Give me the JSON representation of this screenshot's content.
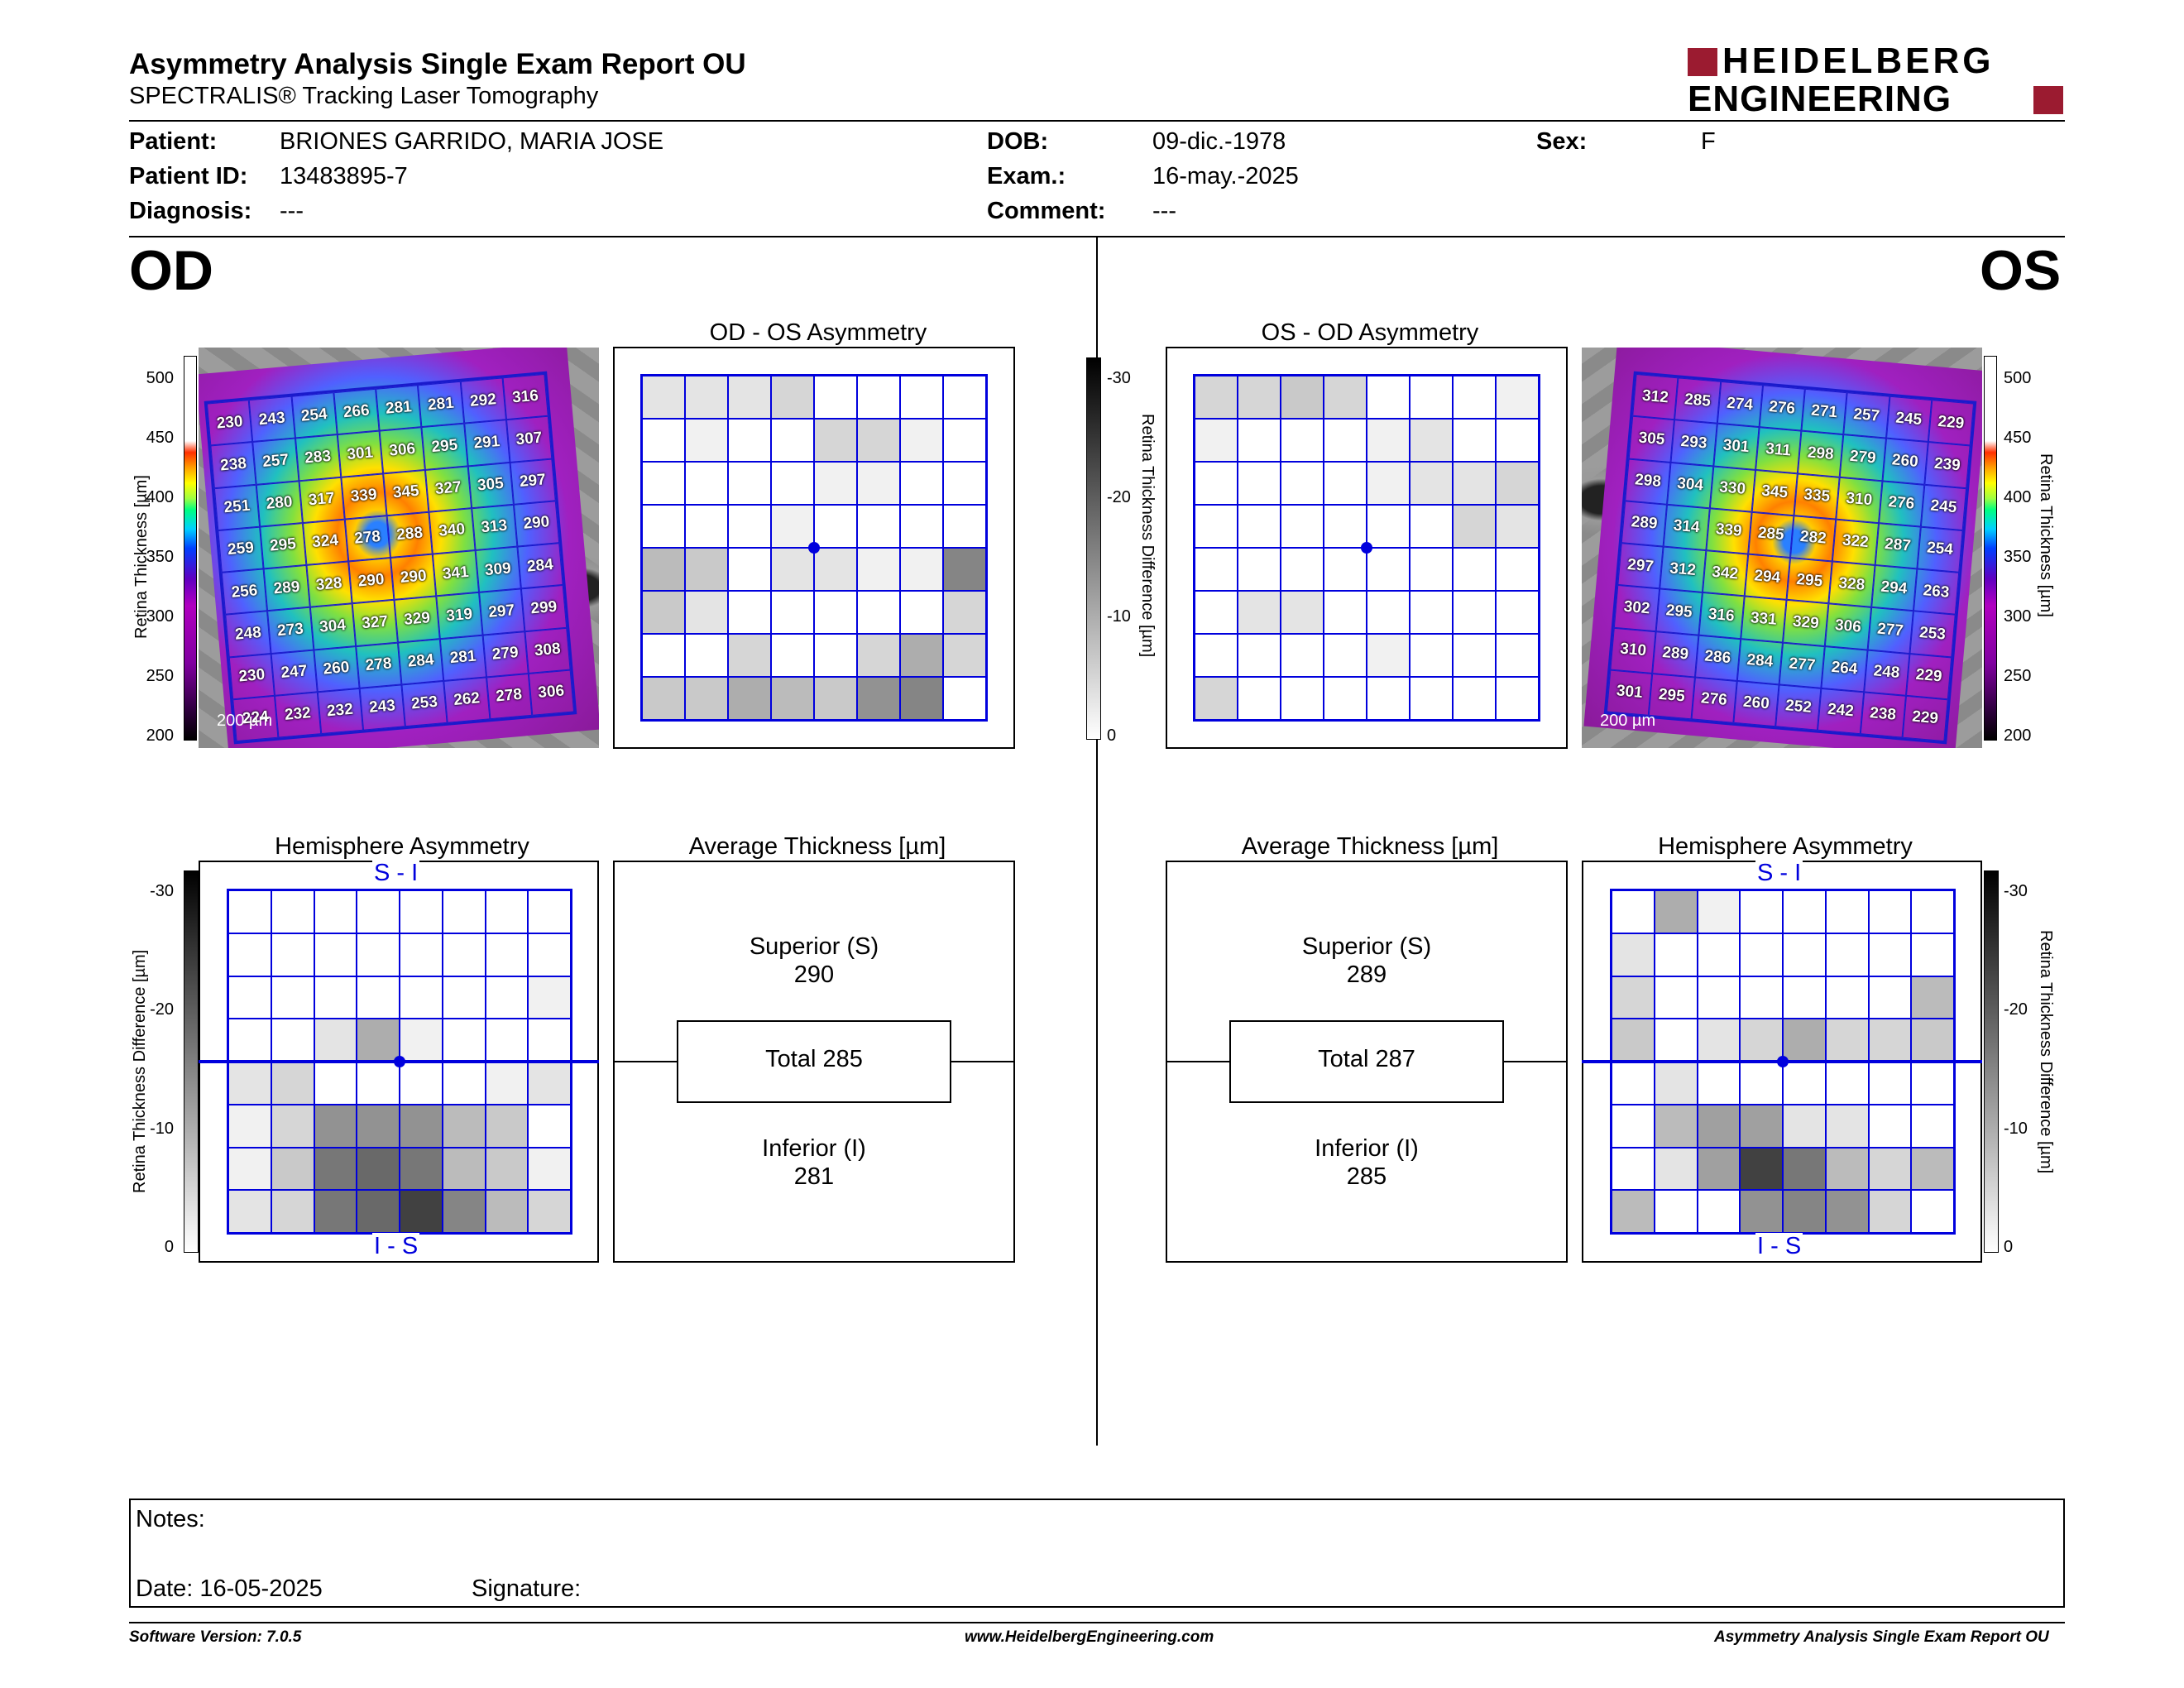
{
  "header": {
    "title": "Asymmetry Analysis Single Exam Report OU",
    "subtitle": "SPECTRALIS® Tracking Laser Tomography",
    "logo_line1": "HEIDELBERG",
    "logo_line2": "ENGINEERING"
  },
  "patient": {
    "patient_label": "Patient:",
    "patient_value": "BRIONES GARRIDO, MARIA JOSE",
    "id_label": "Patient ID:",
    "id_value": "13483895-7",
    "diagnosis_label": "Diagnosis:",
    "diagnosis_value": "---",
    "dob_label": "DOB:",
    "dob_value": "09-dic.-1978",
    "exam_label": "Exam.:",
    "exam_value": "16-may.-2025",
    "comment_label": "Comment:",
    "comment_value": "---",
    "sex_label": "Sex:",
    "sex_value": "F"
  },
  "eyes": {
    "od": "OD",
    "os": "OS"
  },
  "scale_bar": "200 µm",
  "thickness_axis": {
    "label": "Retina Thickness [µm]",
    "ticks": [
      "500",
      "450",
      "400",
      "350",
      "300",
      "250",
      "200"
    ]
  },
  "diff_axis": {
    "label": "Retina Thickness Difference [µm]",
    "ticks": [
      "-30",
      "-20",
      "-10",
      "0"
    ]
  },
  "od_thickness": [
    [
      "230",
      "243",
      "254",
      "266",
      "281",
      "281",
      "292",
      "316"
    ],
    [
      "238",
      "257",
      "283",
      "301",
      "306",
      "295",
      "291",
      "307"
    ],
    [
      "251",
      "280",
      "317",
      "339",
      "345",
      "327",
      "305",
      "297"
    ],
    [
      "259",
      "295",
      "324",
      "278",
      "288",
      "340",
      "313",
      "290"
    ],
    [
      "256",
      "289",
      "328",
      "290",
      "290",
      "341",
      "309",
      "284"
    ],
    [
      "248",
      "273",
      "304",
      "327",
      "329",
      "319",
      "297",
      "299"
    ],
    [
      "230",
      "247",
      "260",
      "278",
      "284",
      "281",
      "279",
      "308"
    ],
    [
      "224",
      "232",
      "232",
      "243",
      "253",
      "262",
      "278",
      "306"
    ]
  ],
  "os_thickness": [
    [
      "312",
      "285",
      "274",
      "276",
      "271",
      "257",
      "245",
      "229"
    ],
    [
      "305",
      "293",
      "301",
      "311",
      "298",
      "279",
      "260",
      "239"
    ],
    [
      "298",
      "304",
      "330",
      "345",
      "335",
      "310",
      "276",
      "245"
    ],
    [
      "289",
      "314",
      "339",
      "285",
      "282",
      "322",
      "287",
      "254"
    ],
    [
      "297",
      "312",
      "342",
      "294",
      "295",
      "328",
      "294",
      "263"
    ],
    [
      "302",
      "295",
      "316",
      "331",
      "329",
      "306",
      "277",
      "253"
    ],
    [
      "310",
      "289",
      "286",
      "284",
      "277",
      "264",
      "248",
      "229"
    ],
    [
      "301",
      "295",
      "276",
      "260",
      "252",
      "242",
      "238",
      "229"
    ]
  ],
  "od_os_asym": {
    "title": "OD - OS Asymmetry",
    "grid": [
      [
        2,
        2,
        2,
        3,
        0,
        0,
        0,
        0
      ],
      [
        0,
        1,
        0,
        0,
        3,
        3,
        1,
        0
      ],
      [
        0,
        0,
        0,
        0,
        1,
        1,
        0,
        0
      ],
      [
        0,
        0,
        0,
        1,
        0,
        0,
        0,
        0
      ],
      [
        5,
        4,
        0,
        2,
        2,
        1,
        1,
        9
      ],
      [
        4,
        2,
        0,
        0,
        0,
        0,
        0,
        3
      ],
      [
        0,
        0,
        3,
        0,
        0,
        3,
        6,
        3
      ],
      [
        4,
        4,
        6,
        5,
        4,
        8,
        9,
        0
      ]
    ]
  },
  "os_od_asym": {
    "title": "OS - OD Asymmetry",
    "grid": [
      [
        3,
        3,
        4,
        3,
        0,
        0,
        0,
        1
      ],
      [
        1,
        0,
        0,
        0,
        1,
        2,
        0,
        0
      ],
      [
        0,
        0,
        0,
        0,
        1,
        2,
        2,
        3
      ],
      [
        0,
        0,
        0,
        0,
        0,
        0,
        3,
        2
      ],
      [
        0,
        0,
        0,
        0,
        0,
        0,
        0,
        0
      ],
      [
        0,
        2,
        2,
        0,
        0,
        0,
        0,
        0
      ],
      [
        0,
        0,
        0,
        0,
        1,
        0,
        0,
        0
      ],
      [
        3,
        0,
        0,
        0,
        0,
        0,
        0,
        0
      ]
    ]
  },
  "od_hemi": {
    "title": "Hemisphere Asymmetry",
    "top": "S - I",
    "bottom": "I - S",
    "grid": [
      [
        0,
        0,
        0,
        0,
        0,
        0,
        0,
        0
      ],
      [
        0,
        0,
        0,
        0,
        0,
        0,
        0,
        0
      ],
      [
        0,
        0,
        0,
        0,
        0,
        0,
        0,
        1
      ],
      [
        0,
        0,
        2,
        6,
        1,
        0,
        0,
        0
      ],
      [
        2,
        3,
        0,
        0,
        0,
        0,
        1,
        2
      ],
      [
        1,
        3,
        8,
        8,
        8,
        5,
        4,
        0
      ],
      [
        1,
        4,
        10,
        11,
        10,
        5,
        4,
        1
      ],
      [
        2,
        3,
        10,
        11,
        14,
        9,
        5,
        3
      ]
    ]
  },
  "os_hemi": {
    "title": "Hemisphere Asymmetry",
    "top": "S - I",
    "bottom": "I - S",
    "grid": [
      [
        0,
        6,
        1,
        0,
        0,
        0,
        0,
        0
      ],
      [
        2,
        0,
        0,
        0,
        0,
        0,
        0,
        0
      ],
      [
        3,
        0,
        0,
        0,
        0,
        0,
        0,
        5
      ],
      [
        4,
        0,
        2,
        3,
        6,
        3,
        3,
        4
      ],
      [
        0,
        2,
        0,
        0,
        0,
        0,
        0,
        0
      ],
      [
        0,
        5,
        7,
        7,
        2,
        2,
        0,
        0
      ],
      [
        0,
        2,
        7,
        14,
        10,
        5,
        3,
        5
      ],
      [
        5,
        0,
        0,
        8,
        9,
        8,
        3,
        0
      ]
    ]
  },
  "od_avg": {
    "title": "Average Thickness [µm]",
    "sup_label": "Superior (S)",
    "sup_value": "290",
    "total": "Total 285",
    "inf_label": "Inferior (I)",
    "inf_value": "281"
  },
  "os_avg": {
    "title": "Average Thickness [µm]",
    "sup_label": "Superior (S)",
    "sup_value": "289",
    "total": "Total 287",
    "inf_label": "Inferior (I)",
    "inf_value": "285"
  },
  "notes": {
    "notes_label": "Notes:",
    "date_label": "Date: 16-05-2025",
    "signature_label": "Signature:"
  },
  "footer": {
    "version": "Software Version: 7.0.5",
    "url": "www.HeidelbergEngineering.com",
    "report": "Asymmetry Analysis Single Exam Report OU"
  }
}
